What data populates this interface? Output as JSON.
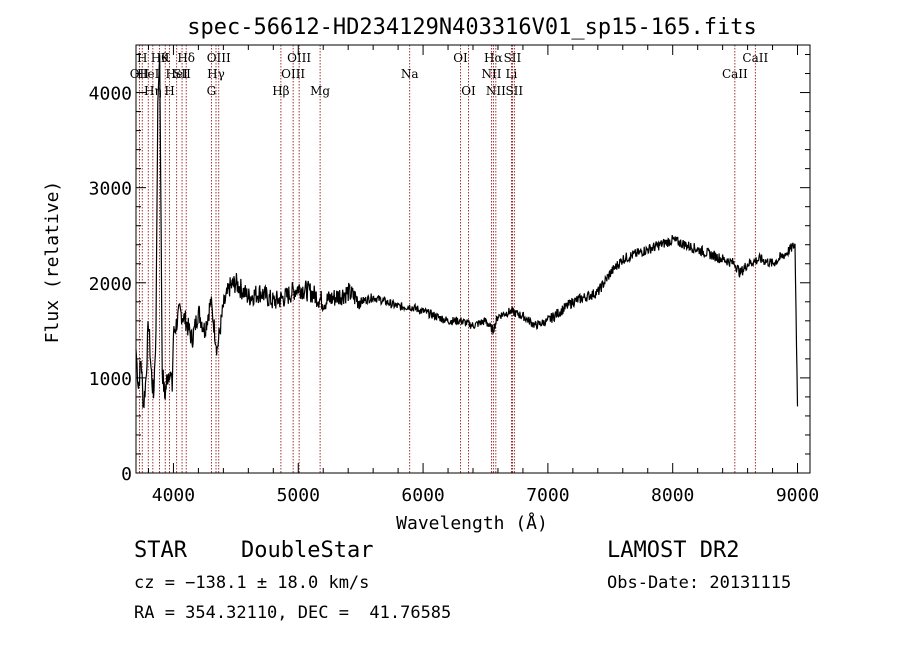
{
  "chart_data": {
    "type": "line",
    "title": "spec-56612-HD234129N403316V01_sp15-165.fits",
    "xlabel": "Wavelength (Å)",
    "ylabel": "Flux (relative)",
    "xlim": [
      3700,
      9100
    ],
    "ylim": [
      0,
      4500
    ],
    "xticks": [
      4000,
      5000,
      6000,
      7000,
      8000,
      9000
    ],
    "yticks": [
      0,
      1000,
      2000,
      3000,
      4000
    ],
    "xtick_labels": [
      "4000",
      "5000",
      "6000",
      "7000",
      "8000",
      "9000"
    ],
    "ytick_labels": [
      "0",
      "1000",
      "2000",
      "3000",
      "4000"
    ],
    "grid": false,
    "line_color": "#000000",
    "marker_color": "#8b0000",
    "series": [
      {
        "x": [
          3700,
          3720,
          3740,
          3760,
          3780,
          3800,
          3820,
          3840,
          3860,
          3875,
          3890,
          3910,
          3930,
          3950,
          3970,
          3990,
          4000,
          4050,
          4100,
          4150,
          4200,
          4250,
          4300,
          4350,
          4400,
          4450,
          4500,
          4600,
          4700,
          4800,
          4900,
          5000,
          5100,
          5200,
          5300,
          5400,
          5500,
          5600,
          5700,
          5800,
          5900,
          6000,
          6100,
          6200,
          6300,
          6400,
          6500,
          6560,
          6600,
          6700,
          6800,
          6900,
          7000,
          7100,
          7200,
          7300,
          7400,
          7500,
          7600,
          7700,
          7800,
          7900,
          8000,
          8100,
          8200,
          8300,
          8400,
          8500,
          8540,
          8600,
          8700,
          8800,
          8900,
          8980,
          9000
        ],
        "y": [
          1300,
          900,
          1200,
          700,
          1000,
          1600,
          1100,
          800,
          1500,
          3900,
          4400,
          1100,
          800,
          1000,
          1100,
          900,
          1450,
          1700,
          1600,
          1400,
          1700,
          1500,
          1800,
          1300,
          1750,
          1950,
          2000,
          1850,
          1900,
          1800,
          1850,
          1950,
          1900,
          1800,
          1850,
          1900,
          1800,
          1850,
          1800,
          1750,
          1750,
          1700,
          1650,
          1600,
          1600,
          1550,
          1600,
          1500,
          1650,
          1700,
          1650,
          1550,
          1600,
          1700,
          1800,
          1850,
          1900,
          2100,
          2250,
          2300,
          2350,
          2400,
          2450,
          2400,
          2350,
          2300,
          2250,
          2200,
          2100,
          2200,
          2250,
          2200,
          2300,
          2400,
          700
        ]
      }
    ],
    "line_markers": [
      {
        "wavelength": 3727,
        "label": "OII",
        "row": 1
      },
      {
        "wavelength": 3750,
        "label": "H",
        "row": 0
      },
      {
        "wavelength": 3798,
        "label": "HeI",
        "row": 1
      },
      {
        "wavelength": 3835,
        "label": "Hη",
        "row": 2
      },
      {
        "wavelength": 3889,
        "label": "Hθ",
        "row": 0
      },
      {
        "wavelength": 3934,
        "label": "K",
        "row": 0
      },
      {
        "wavelength": 3969,
        "label": "H",
        "row": 2
      },
      {
        "wavelength": 4026,
        "label": "HeI",
        "row": 1
      },
      {
        "wavelength": 4069,
        "label": "SII",
        "row": 1
      },
      {
        "wavelength": 4102,
        "label": "Hδ",
        "row": 0
      },
      {
        "wavelength": 4304,
        "label": "G",
        "row": 2
      },
      {
        "wavelength": 4341,
        "label": "Hγ",
        "row": 1
      },
      {
        "wavelength": 4363,
        "label": "OIII",
        "row": 0
      },
      {
        "wavelength": 4861,
        "label": "Hβ",
        "row": 2
      },
      {
        "wavelength": 4959,
        "label": "OIII",
        "row": 1
      },
      {
        "wavelength": 5007,
        "label": "OIII",
        "row": 0
      },
      {
        "wavelength": 5175,
        "label": "Mg",
        "row": 2
      },
      {
        "wavelength": 5893,
        "label": "Na",
        "row": 1
      },
      {
        "wavelength": 6300,
        "label": "OI",
        "row": 0
      },
      {
        "wavelength": 6364,
        "label": "OI",
        "row": 2
      },
      {
        "wavelength": 6548,
        "label": "NII",
        "row": 1
      },
      {
        "wavelength": 6563,
        "label": "Hα",
        "row": 0
      },
      {
        "wavelength": 6583,
        "label": "NII",
        "row": 2
      },
      {
        "wavelength": 6708,
        "label": "Li",
        "row": 1
      },
      {
        "wavelength": 6716,
        "label": "SII",
        "row": 0
      },
      {
        "wavelength": 6731,
        "label": "SII",
        "row": 2
      },
      {
        "wavelength": 8498,
        "label": "CaII",
        "row": 1
      },
      {
        "wavelength": 8662,
        "label": "CaII",
        "row": 0
      }
    ]
  },
  "info": {
    "object_class": "STAR",
    "subclass": "DoubleStar",
    "survey": "LAMOST DR2",
    "velocity": "cz = −138.1 ± 18.0 km/s",
    "obs_date": "Obs-Date: 20131115",
    "coords": "RA = 354.32110, DEC =  41.76585"
  }
}
